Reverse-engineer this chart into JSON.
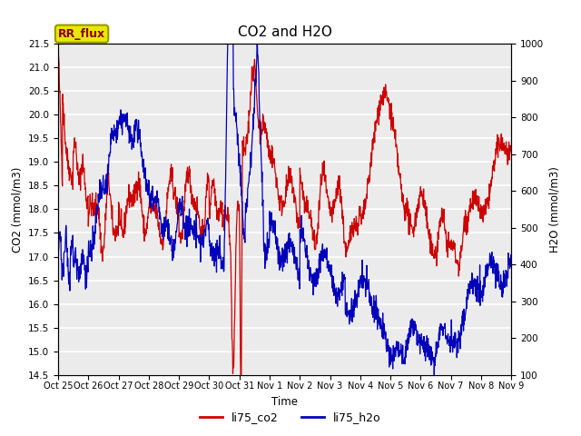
{
  "title": "CO2 and H2O",
  "ylabel_left": "CO2 (mmol/m3)",
  "ylabel_right": "H2O (mmol/m3)",
  "xlabel": "Time",
  "ylim_left": [
    14.5,
    21.5
  ],
  "ylim_right": [
    100,
    1000
  ],
  "yticks_left": [
    14.5,
    15.0,
    15.5,
    16.0,
    16.5,
    17.0,
    17.5,
    18.0,
    18.5,
    19.0,
    19.5,
    20.0,
    20.5,
    21.0,
    21.5
  ],
  "yticks_right": [
    100,
    200,
    300,
    400,
    500,
    600,
    700,
    800,
    900,
    1000
  ],
  "xtick_labels": [
    "Oct 25",
    "Oct 26",
    "Oct 27",
    "Oct 28",
    "Oct 29",
    "Oct 30",
    "Oct 31",
    "Nov 1",
    "Nov 2",
    "Nov 3",
    "Nov 4",
    "Nov 5",
    "Nov 6",
    "Nov 7",
    "Nov 8",
    "Nov 9"
  ],
  "color_co2": "#cc0000",
  "color_h2o": "#0000bb",
  "legend_co2": "li75_co2",
  "legend_h2o": "li75_h2o",
  "annotation_text": "RR_flux",
  "annotation_bg": "#e8e800",
  "annotation_border": "#999900",
  "plot_bg": "#ebebeb",
  "grid_color": "#ffffff",
  "title_fontsize": 11,
  "linewidth": 0.9
}
